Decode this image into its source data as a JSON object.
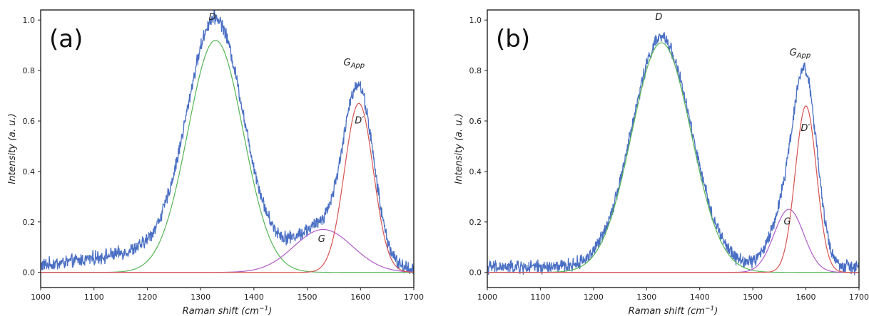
{
  "chart_data": [
    {
      "type": "line",
      "panel_label": "(a)",
      "xlabel_main": "Raman shift (cm",
      "xlabel_sup": "−1",
      "xlabel_close": ")",
      "ylabel": "Intensity (a. u.)",
      "xlim": [
        1000,
        1700
      ],
      "ylim": [
        -0.06,
        1.04
      ],
      "xticks": [
        1000,
        1100,
        1200,
        1300,
        1400,
        1500,
        1600,
        1700
      ],
      "yticks": [
        0.0,
        0.2,
        0.4,
        0.6,
        0.8,
        1.0
      ],
      "series": [
        {
          "kind": "data",
          "color": "#4a6fc4",
          "noise": 0.022,
          "baseline": 0.012,
          "peaks": [
            {
              "center": 1328,
              "amp": 0.93,
              "width": 52
            },
            {
              "center": 1530,
              "amp": 0.16,
              "width": 52
            },
            {
              "center": 1597,
              "amp": 0.66,
              "width": 28
            },
            {
              "center": 1250,
              "amp": 0.08,
              "width": 140
            }
          ]
        },
        {
          "kind": "fit",
          "color": "#55b455",
          "center": 1328,
          "amp": 0.92,
          "width": 52
        },
        {
          "kind": "fit",
          "color": "#b05cc6",
          "center": 1530,
          "amp": 0.17,
          "width": 55
        },
        {
          "kind": "fit",
          "color": "#d9534f",
          "center": 1597,
          "amp": 0.67,
          "width": 27
        }
      ],
      "annotations": [
        {
          "text": "D",
          "x": 1322,
          "y": 1.0
        },
        {
          "text": "G",
          "sub": "App",
          "x": 1588,
          "y": 0.82
        },
        {
          "text": "D′",
          "x": 1598,
          "y": 0.59
        },
        {
          "text": "G",
          "x": 1527,
          "y": 0.12
        }
      ]
    },
    {
      "type": "line",
      "panel_label": "(b)",
      "xlabel_main": "Raman shift (cm",
      "xlabel_sup": "−1",
      "xlabel_close": ")",
      "ylabel": "Intensity (a. u.)",
      "xlim": [
        1000,
        1700
      ],
      "ylim": [
        -0.06,
        1.04
      ],
      "xticks": [
        1000,
        1100,
        1200,
        1300,
        1400,
        1500,
        1600,
        1700
      ],
      "yticks": [
        0.0,
        0.2,
        0.4,
        0.6,
        0.8,
        1.0
      ],
      "series": [
        {
          "kind": "data",
          "color": "#4a6fc4",
          "noise": 0.022,
          "baseline": 0.02,
          "peaks": [
            {
              "center": 1328,
              "amp": 0.91,
              "width": 56
            },
            {
              "center": 1568,
              "amp": 0.25,
              "width": 30
            },
            {
              "center": 1600,
              "amp": 0.64,
              "width": 22
            }
          ]
        },
        {
          "kind": "fit",
          "color": "#55b455",
          "center": 1328,
          "amp": 0.91,
          "width": 56
        },
        {
          "kind": "fit",
          "color": "#b05cc6",
          "center": 1568,
          "amp": 0.25,
          "width": 28
        },
        {
          "kind": "fit",
          "color": "#d9534f",
          "center": 1600,
          "amp": 0.66,
          "width": 20
        }
      ],
      "annotations": [
        {
          "text": "D",
          "x": 1323,
          "y": 1.0
        },
        {
          "text": "G",
          "sub": "App",
          "x": 1589,
          "y": 0.86
        },
        {
          "text": "D′",
          "x": 1599,
          "y": 0.56
        },
        {
          "text": "G",
          "x": 1565,
          "y": 0.19
        }
      ]
    }
  ]
}
